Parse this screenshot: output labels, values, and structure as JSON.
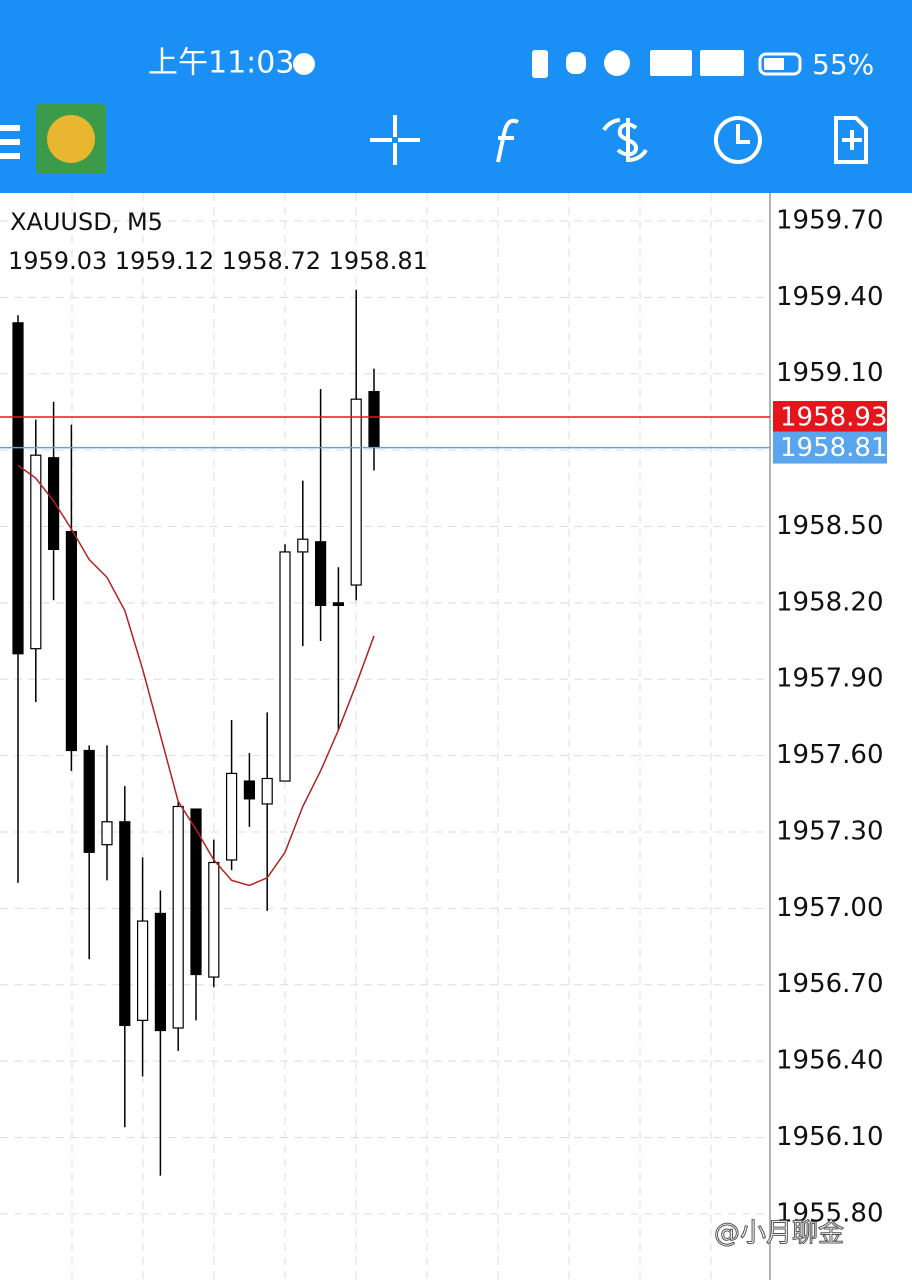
{
  "status_bar": {
    "time": "上午11:03",
    "battery": "55%"
  },
  "chart_data": {
    "type": "candlestick",
    "title": "XAUUSD, M5",
    "subtitle": "1959.03 1959.12 1958.72 1958.81",
    "open": [
      1959.3,
      1958.02,
      1958.77,
      1958.48,
      1957.62,
      1957.25,
      1957.34,
      1956.56,
      1956.98,
      1956.53,
      1957.39,
      1956.73,
      1957.19,
      1957.5,
      1957.41,
      1957.5,
      1958.4,
      1958.44,
      1958.2,
      1958.27,
      1959.03
    ],
    "high": [
      1959.33,
      1958.92,
      1958.99,
      1958.9,
      1957.64,
      1957.64,
      1957.48,
      1957.2,
      1957.07,
      1957.42,
      1957.39,
      1957.27,
      1957.74,
      1957.61,
      1957.77,
      1958.43,
      1958.68,
      1959.04,
      1958.34,
      1959.43,
      1959.12
    ],
    "low": [
      1957.1,
      1957.81,
      1958.21,
      1957.54,
      1956.8,
      1957.11,
      1956.14,
      1956.34,
      1955.95,
      1956.44,
      1956.56,
      1956.69,
      1957.15,
      1957.32,
      1956.99,
      1957.5,
      1958.03,
      1958.05,
      1957.7,
      1958.21,
      1958.72
    ],
    "close": [
      1958.0,
      1958.78,
      1958.41,
      1957.62,
      1957.22,
      1957.34,
      1956.54,
      1956.95,
      1956.52,
      1957.4,
      1956.74,
      1957.18,
      1957.53,
      1957.43,
      1957.51,
      1958.4,
      1958.45,
      1958.19,
      1958.19,
      1959.0,
      1958.81
    ],
    "ma": [
      1958.74,
      1958.69,
      1958.6,
      1958.49,
      1958.37,
      1958.3,
      1958.17,
      1957.94,
      1957.68,
      1957.42,
      1957.31,
      1957.19,
      1957.11,
      1957.09,
      1957.12,
      1957.22,
      1957.4,
      1957.54,
      1957.7,
      1957.88,
      1958.07
    ],
    "ma_color": "#b22222",
    "ylim": [
      1955.54,
      1959.81
    ],
    "yticks": [
      {
        "value": 1959.7,
        "label": "1959.70"
      },
      {
        "value": 1959.4,
        "label": "1959.40"
      },
      {
        "value": 1959.1,
        "label": "1959.10"
      },
      {
        "value": 1958.8,
        "label": "1958.80"
      },
      {
        "value": 1958.5,
        "label": "1958.50"
      },
      {
        "value": 1958.2,
        "label": "1958.20"
      },
      {
        "value": 1957.9,
        "label": "1957.90"
      },
      {
        "value": 1957.6,
        "label": "1957.60"
      },
      {
        "value": 1957.3,
        "label": "1957.30"
      },
      {
        "value": 1957.0,
        "label": "1957.00"
      },
      {
        "value": 1956.7,
        "label": "1956.70"
      },
      {
        "value": 1956.4,
        "label": "1956.40"
      },
      {
        "value": 1956.1,
        "label": "1956.10"
      },
      {
        "value": 1955.8,
        "label": "1955.80"
      }
    ],
    "price_lines": [
      {
        "value": 1958.93,
        "color": "#e8141c"
      },
      {
        "value": 1958.81,
        "color": "#5aa6ee"
      }
    ],
    "grid": true
  },
  "watermark": "@小月聊金"
}
